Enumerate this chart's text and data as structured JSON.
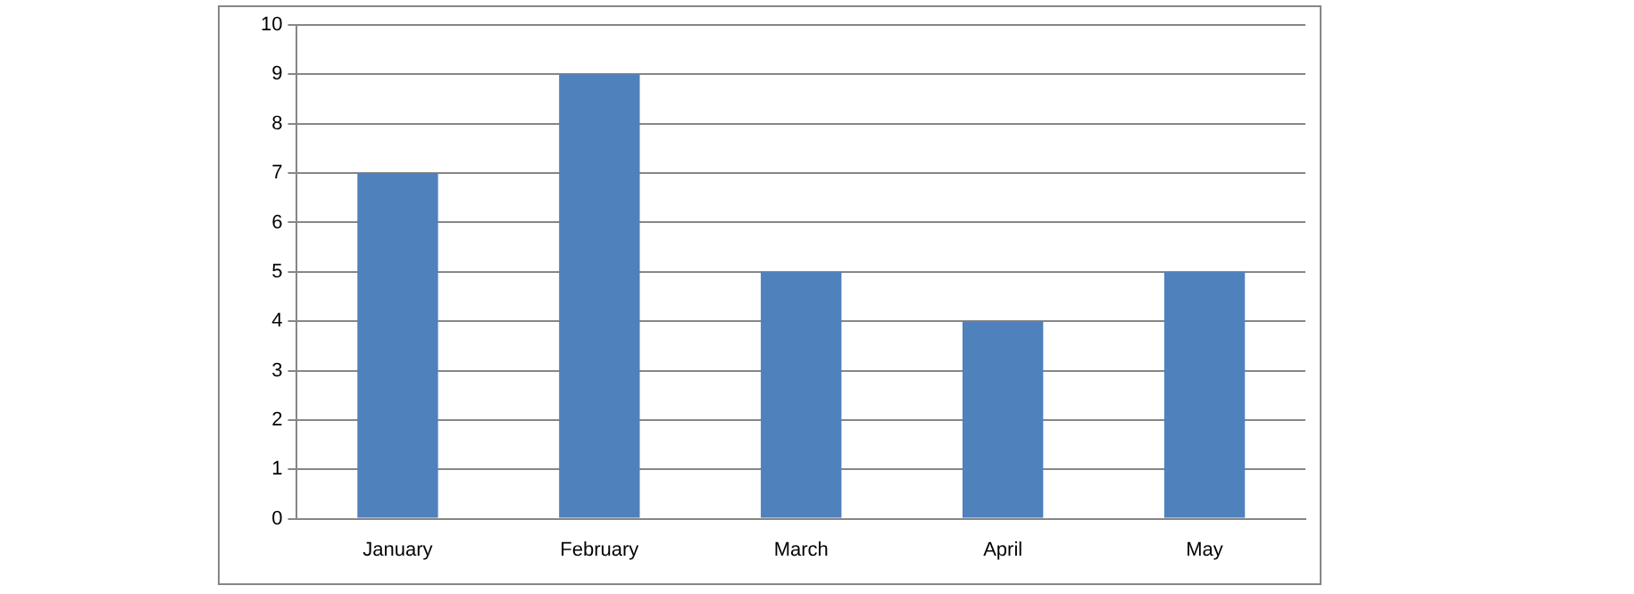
{
  "chart_data": {
    "type": "bar",
    "categories": [
      "January",
      "February",
      "March",
      "April",
      "May"
    ],
    "values": [
      7,
      9,
      5,
      4,
      5
    ],
    "color": "#4f81bd",
    "ylim": [
      0,
      10
    ],
    "yticks": [
      0,
      1,
      2,
      3,
      4,
      5,
      6,
      7,
      8,
      9,
      10
    ],
    "grid": "y",
    "legend": false
  }
}
